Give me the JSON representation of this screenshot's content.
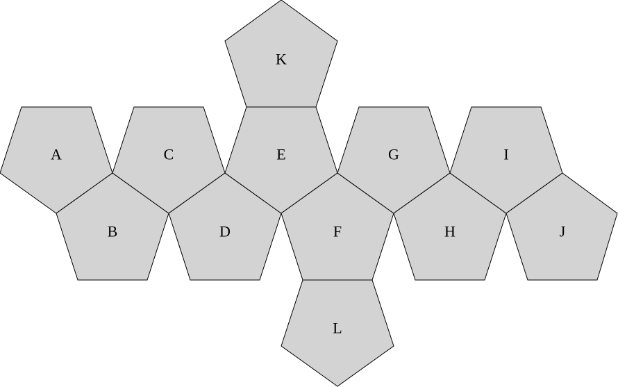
{
  "faces": [
    {
      "label": "A"
    },
    {
      "label": "B"
    },
    {
      "label": "C"
    },
    {
      "label": "D"
    },
    {
      "label": "E"
    },
    {
      "label": "F"
    },
    {
      "label": "G"
    },
    {
      "label": "H"
    },
    {
      "label": "I"
    },
    {
      "label": "J"
    },
    {
      "label": "K"
    },
    {
      "label": "L"
    }
  ],
  "colors": {
    "face_fill": "#d3d3d3",
    "edge": "#000000",
    "background": "#ffffff"
  }
}
